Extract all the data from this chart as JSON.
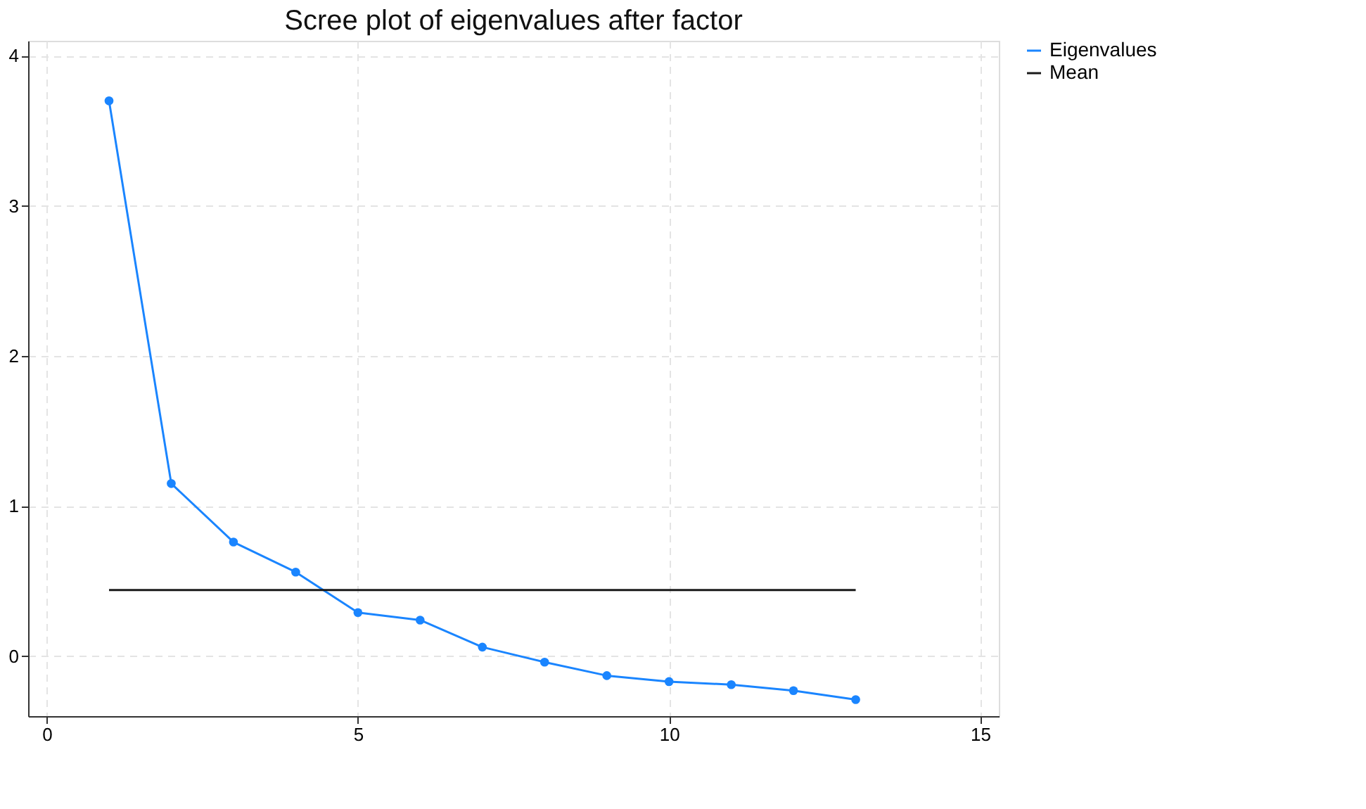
{
  "chart_data": {
    "type": "line",
    "title": "Scree plot of eigenvalues after factor",
    "x": [
      1,
      2,
      3,
      4,
      5,
      6,
      7,
      8,
      9,
      10,
      11,
      12,
      13
    ],
    "series": [
      {
        "name": "Eigenvalues",
        "color": "#1a85ff",
        "marker": "circle",
        "values": [
          3.7,
          1.15,
          0.76,
          0.56,
          0.29,
          0.24,
          0.06,
          -0.04,
          -0.13,
          -0.17,
          -0.19,
          -0.23,
          -0.29
        ]
      },
      {
        "name": "Mean",
        "color": "#1a1a1a",
        "marker": "none",
        "x": [
          1,
          13
        ],
        "values": [
          0.44,
          0.44
        ]
      }
    ],
    "xlim": [
      -0.3,
      15.3
    ],
    "xticks": [
      0,
      5,
      10,
      15
    ],
    "ylim": [
      -0.4,
      4.1
    ],
    "yticks": [
      0,
      1,
      2,
      3,
      4
    ],
    "grid": true,
    "legend": "right",
    "line_style": "solid"
  }
}
